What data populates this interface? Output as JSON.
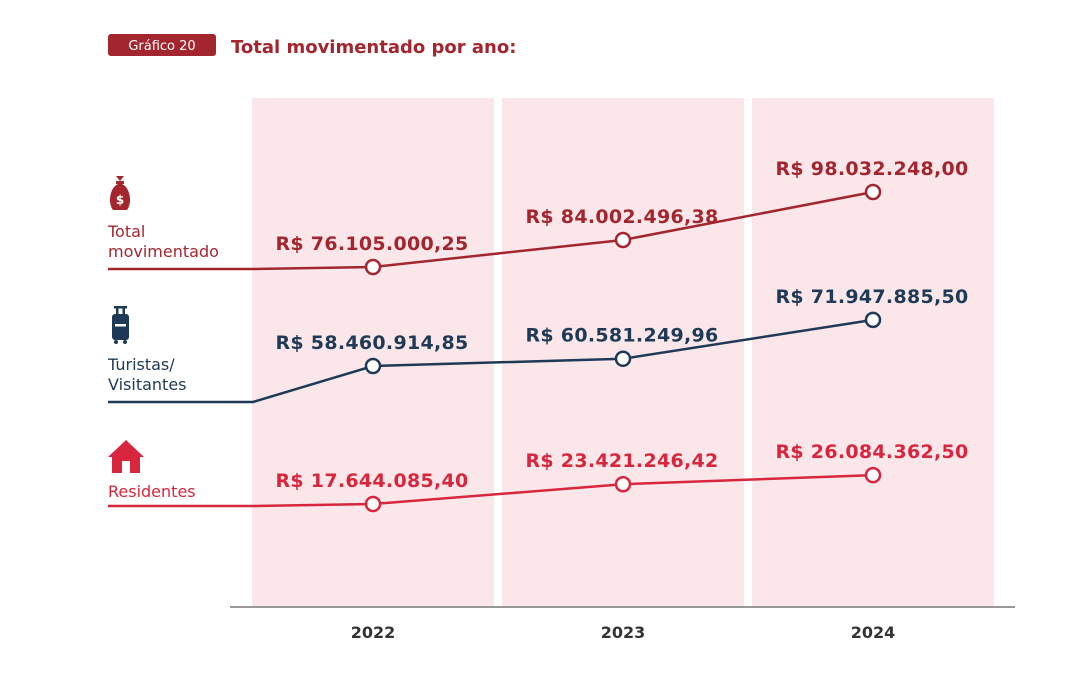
{
  "header": {
    "badge": "Gráfico 20",
    "title": "Total movimentado por ano:"
  },
  "colors": {
    "badge_bg": "#a3262f",
    "title": "#a3262f",
    "column_bg": "#fbe7ea",
    "axis": "#777777",
    "total": "#a3262f",
    "turistas": "#1f3a56",
    "residentes": "#d7263d"
  },
  "chart_data": {
    "type": "line",
    "categories": [
      "2022",
      "2023",
      "2024"
    ],
    "grid": false,
    "series": [
      {
        "key": "total",
        "name": [
          "Total",
          "movimentado"
        ],
        "icon": "money-bag-icon",
        "values": [
          76105000.25,
          84002496.38,
          98032248.0
        ],
        "labels": [
          "R$ 76.105.000,25",
          "R$ 84.002.496,38",
          "R$ 98.032.248,00"
        ]
      },
      {
        "key": "turistas",
        "name": [
          "Turistas/",
          "Visitantes"
        ],
        "icon": "luggage-icon",
        "values": [
          58460914.85,
          60581249.96,
          71947885.5
        ],
        "labels": [
          "R$ 58.460.914,85",
          "R$ 60.581.249,96",
          "R$ 71.947.885,50"
        ]
      },
      {
        "key": "residentes",
        "name": [
          "Residentes"
        ],
        "icon": "house-icon",
        "values": [
          17644085.4,
          23421246.42,
          26084362.5
        ],
        "labels": [
          "R$ 17.644.085,40",
          "R$ 23.421.246,42",
          "R$ 26.084.362,50"
        ]
      }
    ]
  }
}
